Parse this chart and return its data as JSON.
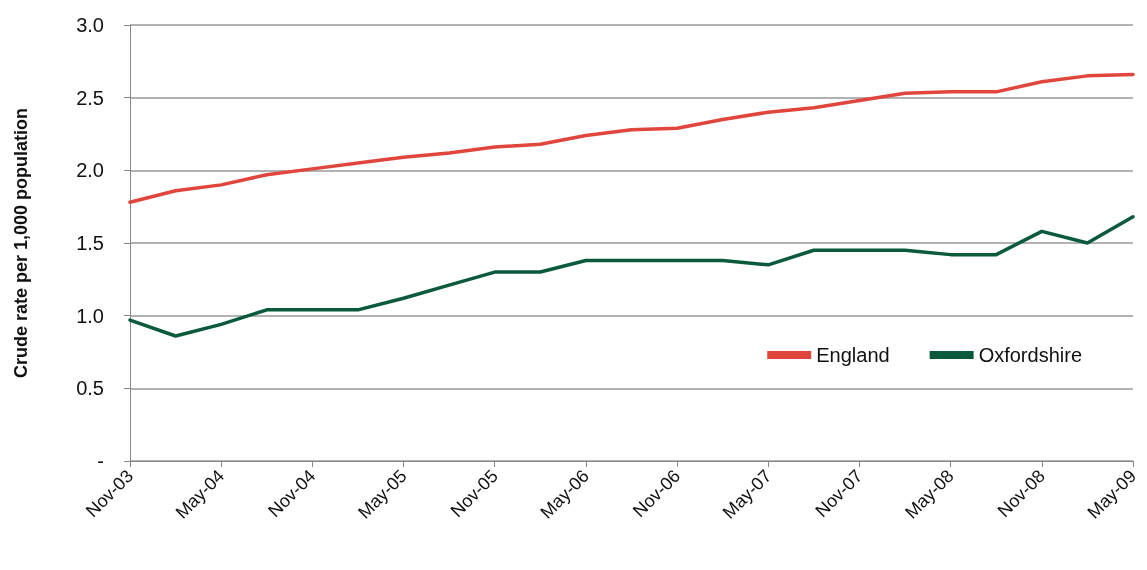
{
  "chart_data": {
    "type": "line",
    "ylabel": "Crude rate per 1,000 population",
    "categories": [
      "Nov-03",
      null,
      "May-04",
      null,
      "Nov-04",
      null,
      "May-05",
      null,
      "Nov-05",
      null,
      "May-06",
      null,
      "Nov-06",
      null,
      "May-07",
      null,
      "Nov-07",
      null,
      "May-08",
      null,
      "Nov-08",
      null,
      "May-09"
    ],
    "series": [
      {
        "name": "England",
        "color": "#e0463c",
        "values": [
          1.78,
          1.86,
          1.9,
          1.97,
          2.01,
          2.05,
          2.09,
          2.12,
          2.16,
          2.18,
          2.24,
          2.28,
          2.29,
          2.35,
          2.4,
          2.43,
          2.48,
          2.53,
          2.54,
          2.54,
          2.61,
          2.65,
          2.66
        ]
      },
      {
        "name": "Oxfordshire",
        "color": "#0b5a3c",
        "values": [
          0.97,
          0.86,
          0.94,
          1.04,
          1.04,
          1.04,
          1.12,
          1.21,
          1.3,
          1.3,
          1.38,
          1.38,
          1.38,
          1.38,
          1.35,
          1.45,
          1.45,
          1.45,
          1.42,
          1.42,
          1.58,
          1.5,
          1.68
        ]
      }
    ],
    "ylim": [
      0,
      3
    ],
    "yticks": [
      {
        "value": 0,
        "label": "-"
      },
      {
        "value": 0.5,
        "label": "0.5"
      },
      {
        "value": 1,
        "label": "1.0"
      },
      {
        "value": 1.5,
        "label": "1.5"
      },
      {
        "value": 2,
        "label": "2.0"
      },
      {
        "value": 2.5,
        "label": "2.5"
      },
      {
        "value": 3,
        "label": "3.0"
      }
    ],
    "grid": "y",
    "legend": "right",
    "marker": "none",
    "line_style": "solid"
  }
}
